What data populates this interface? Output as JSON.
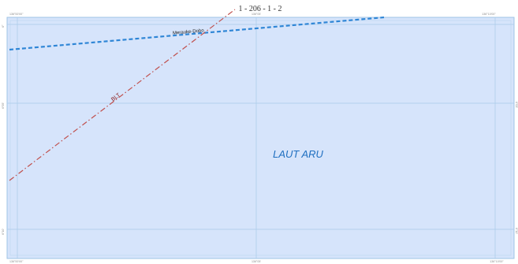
{
  "map": {
    "sheet_id": "1 - 206 - 1 - 2",
    "sea_name": "LAUT ARU",
    "ferry_route": {
      "label": "Merauke-Dobo"
    },
    "boundary": {
      "label": "BLT"
    },
    "coords": {
      "top_left": "136°00'00\"",
      "top_mid": "136°05'",
      "top_right": "136°10'00\"",
      "bottom_left": "136°00'00\"",
      "bottom_mid": "136°05'",
      "bottom_right": "136°10'00\"",
      "left_top": "6°",
      "left_mid": "6°05'",
      "left_bottom": "6°10'",
      "right_mid": "6°05'",
      "right_bottom": "6°10'"
    },
    "colors": {
      "sea_fill": "#d6e4fb",
      "frame": "#9fc3e6",
      "grid": "#a9cbe8",
      "ferry_route": "#2f86d6",
      "boundary": "#c0504d",
      "sea_label": "#1f6fc0"
    }
  }
}
